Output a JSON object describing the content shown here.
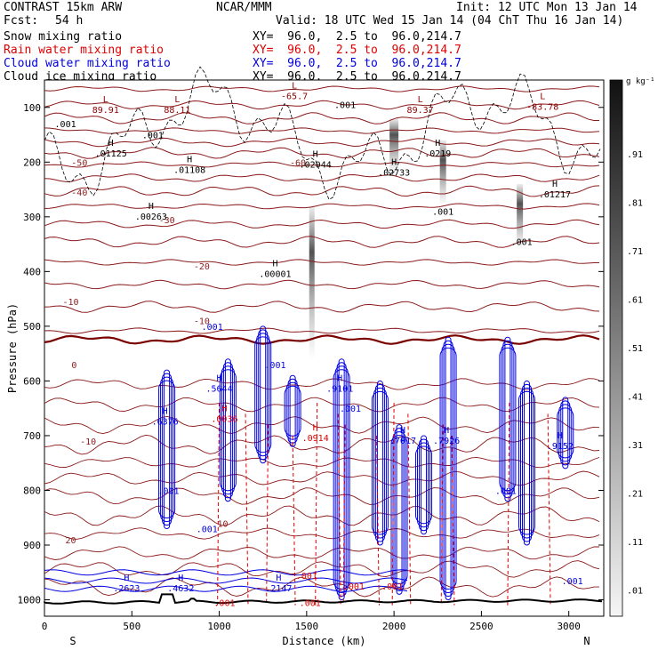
{
  "header": {
    "model": "CONTRAST 15km ARW",
    "fcst_label": "Fcst:",
    "fcst_value": "54 h",
    "center": "NCAR/MMM",
    "init": "Init: 12 UTC Mon 13 Jan 14",
    "valid": "Valid: 18 UTC Wed 15 Jan 14 (04 ChT Thu 16 Jan 14)"
  },
  "fields": [
    {
      "name": "Snow mixing ratio",
      "xy": "XY=  96.0,  2.5 to  96.0,214.7",
      "color": "#000000"
    },
    {
      "name": "Rain water mixing ratio",
      "xy": "XY=  96.0,  2.5 to  96.0,214.7",
      "color": "#e00000"
    },
    {
      "name": "Cloud water mixing ratio",
      "xy": "XY=  96.0,  2.5 to  96.0,214.7",
      "color": "#0000e0"
    },
    {
      "name": "Cloud ice mixing ratio",
      "xy": "XY=  96.0,  2.5 to  96.0,214.7",
      "color": "#000000"
    }
  ],
  "chart_data": {
    "type": "cross-section",
    "xlabel": "Distance (km)",
    "ylabel": "Pressure (hPa)",
    "x_ticks": [
      0,
      500,
      1000,
      1500,
      2000,
      2500,
      3000
    ],
    "x_tick_labels": [
      "0",
      "500",
      "1000",
      "1500",
      "2000",
      "2500",
      "3000"
    ],
    "xlim": [
      0,
      3200
    ],
    "y_ticks": [
      100,
      200,
      300,
      400,
      500,
      600,
      700,
      800,
      900,
      1000
    ],
    "y_tick_labels": [
      "100",
      "200",
      "300",
      "400",
      "500",
      "600",
      "700",
      "800",
      "900",
      "1000"
    ],
    "ylim": [
      50,
      1030
    ],
    "endpoints": {
      "left": "S",
      "right": "N"
    },
    "colorbar": {
      "unit": "g kg⁻¹",
      "labels": [
        ".91",
        ".81",
        ".71",
        ".61",
        ".51",
        ".41",
        ".31",
        ".21",
        ".11",
        ".01"
      ]
    },
    "temperature_contours": [
      {
        "label": "-60",
        "x": 1450,
        "p": 200
      },
      {
        "label": "-50",
        "x": 200,
        "p": 200
      },
      {
        "label": "-40",
        "x": 200,
        "p": 255
      },
      {
        "label": "-30",
        "x": 700,
        "p": 305
      },
      {
        "label": "-20",
        "x": 900,
        "p": 390
      },
      {
        "label": "-10",
        "x": 150,
        "p": 455
      },
      {
        "label": "-10",
        "x": 900,
        "p": 490
      },
      {
        "label": "0",
        "x": 170,
        "p": 570
      },
      {
        "label": "-10",
        "x": 250,
        "p": 710
      },
      {
        "label": "10",
        "x": 1020,
        "p": 860
      },
      {
        "label": "20",
        "x": 150,
        "p": 890
      }
    ],
    "maxima": [
      {
        "kind": "L",
        "value": "89.91",
        "x": 350,
        "p": 100,
        "color": "#8b0000"
      },
      {
        "kind": "L",
        "value": "88.11",
        "x": 760,
        "p": 100,
        "color": "#8b0000"
      },
      {
        "kind": "L",
        "value": "-65.7",
        "x": 1430,
        "p": 75,
        "color": "#8b0000"
      },
      {
        "kind": "L",
        "value": "89.37",
        "x": 2150,
        "p": 100,
        "color": "#8b0000"
      },
      {
        "kind": "L",
        "value": "-83.78",
        "x": 2850,
        "p": 95,
        "color": "#8b0000"
      },
      {
        "kind": "H",
        "value": ".01125",
        "x": 380,
        "p": 180,
        "color": "#000000"
      },
      {
        "kind": "H",
        "value": ".01108",
        "x": 830,
        "p": 210,
        "color": "#000000"
      },
      {
        "kind": "H",
        "value": ".02044",
        "x": 1550,
        "p": 200,
        "color": "#000000"
      },
      {
        "kind": "H",
        "value": ".02733",
        "x": 2000,
        "p": 215,
        "color": "#000000"
      },
      {
        "kind": "H",
        "value": ".0219",
        "x": 2250,
        "p": 180,
        "color": "#000000"
      },
      {
        "kind": "H",
        "value": ".01217",
        "x": 2920,
        "p": 255,
        "color": "#000000"
      },
      {
        "kind": "H",
        "value": ".00263",
        "x": 610,
        "p": 295,
        "color": "#000000"
      },
      {
        "kind": "H",
        "value": ".00001",
        "x": 1320,
        "p": 400,
        "color": "#000000"
      },
      {
        "kind": "H",
        "value": ".6376",
        "x": 690,
        "p": 670,
        "color": "#0000e0"
      },
      {
        "kind": "H",
        "value": ".5644",
        "x": 1000,
        "p": 610,
        "color": "#0000e0"
      },
      {
        "kind": "H",
        "value": ".9101",
        "x": 1690,
        "p": 610,
        "color": "#0000e0"
      },
      {
        "kind": "H",
        "value": ".7017",
        "x": 2050,
        "p": 705,
        "color": "#0000e0"
      },
      {
        "kind": "H",
        "value": ".7926",
        "x": 2300,
        "p": 705,
        "color": "#0000e0"
      },
      {
        "kind": "H",
        "value": ".9152",
        "x": 2950,
        "p": 715,
        "color": "#0000e0"
      },
      {
        "kind": "H",
        "value": ".2623",
        "x": 470,
        "p": 975,
        "color": "#0000e0"
      },
      {
        "kind": "H",
        "value": ".4632",
        "x": 780,
        "p": 975,
        "color": "#0000e0"
      },
      {
        "kind": "H",
        "value": ".2147",
        "x": 1340,
        "p": 975,
        "color": "#0000e0"
      },
      {
        "kind": "H",
        "value": ".0914",
        "x": 1550,
        "p": 700,
        "color": "#e00000"
      },
      {
        "kind": "H",
        "value": ".0036",
        "x": 1030,
        "p": 665,
        "color": "#e00000"
      }
    ],
    "small_labels": [
      {
        "text": ".001",
        "x": 120,
        "p": 130,
        "color": "#000000"
      },
      {
        "text": ".001",
        "x": 620,
        "p": 150,
        "color": "#000000"
      },
      {
        "text": ".001",
        "x": 1720,
        "p": 95,
        "color": "#000000"
      },
      {
        "text": ".001",
        "x": 2280,
        "p": 290,
        "color": "#000000"
      },
      {
        "text": ".001",
        "x": 2730,
        "p": 345,
        "color": "#000000"
      },
      {
        "text": ".001",
        "x": 960,
        "p": 500,
        "color": "#0000e0"
      },
      {
        "text": ".001",
        "x": 1320,
        "p": 570,
        "color": "#0000e0"
      },
      {
        "text": ".001",
        "x": 1750,
        "p": 650,
        "color": "#0000e0"
      },
      {
        "text": ".001",
        "x": 710,
        "p": 800,
        "color": "#0000e0"
      },
      {
        "text": ".001",
        "x": 930,
        "p": 870,
        "color": "#0000e0"
      },
      {
        "text": ".001",
        "x": 2640,
        "p": 800,
        "color": "#0000e0"
      },
      {
        "text": ".001",
        "x": 3020,
        "p": 965,
        "color": "#0000e0"
      },
      {
        "text": ".001",
        "x": 1500,
        "p": 955,
        "color": "#e00000"
      },
      {
        "text": ".001",
        "x": 1770,
        "p": 975,
        "color": "#e00000"
      },
      {
        "text": ".001",
        "x": 1990,
        "p": 975,
        "color": "#e00000"
      },
      {
        "text": ".001",
        "x": 1030,
        "p": 1005,
        "color": "#e00000"
      },
      {
        "text": ".001",
        "x": 1520,
        "p": 1005,
        "color": "#e00000"
      }
    ]
  }
}
